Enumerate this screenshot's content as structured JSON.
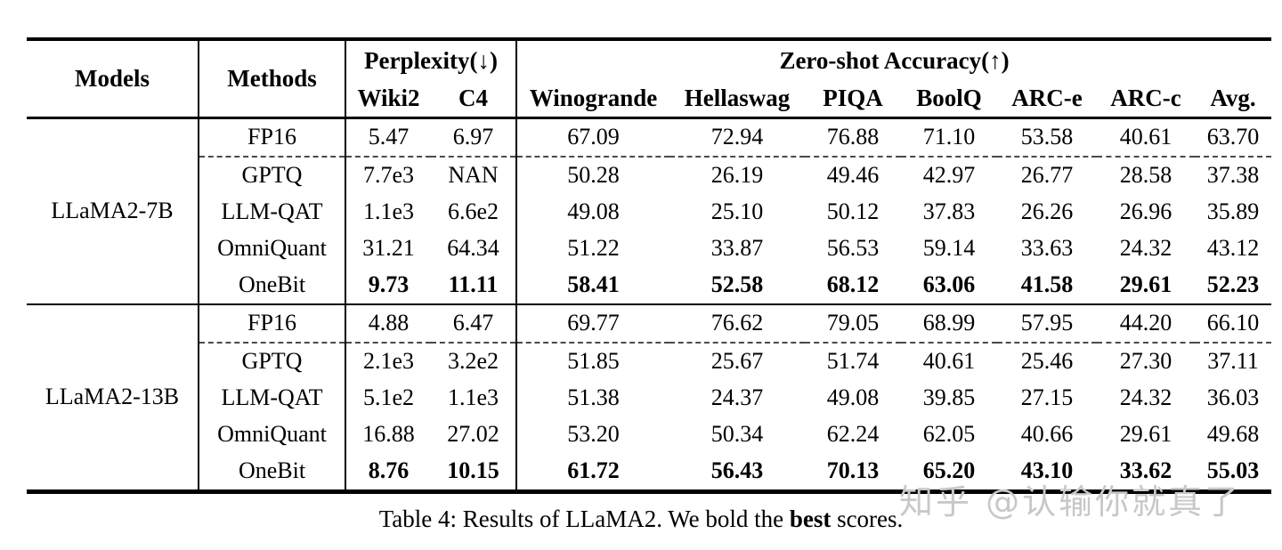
{
  "table": {
    "header": {
      "models": "Models",
      "methods": "Methods",
      "perplexity_group": "Perplexity(↓)",
      "accuracy_group": "Zero-shot Accuracy(↑)",
      "subcolumns": [
        "Wiki2",
        "C4",
        "Winogrande",
        "Hellaswag",
        "PIQA",
        "BoolQ",
        "ARC-e",
        "ARC-c",
        "Avg."
      ]
    },
    "groups": [
      {
        "model": "LLaMA2-7B",
        "rows": [
          {
            "method": "FP16",
            "values": [
              "5.47",
              "6.97",
              "67.09",
              "72.94",
              "76.88",
              "71.10",
              "53.58",
              "40.61",
              "63.70"
            ],
            "bold_values": false,
            "dashed_above": false
          },
          {
            "method": "GPTQ",
            "values": [
              "7.7e3",
              "NAN",
              "50.28",
              "26.19",
              "49.46",
              "42.97",
              "26.77",
              "28.58",
              "37.38"
            ],
            "bold_values": false,
            "dashed_above": true
          },
          {
            "method": "LLM-QAT",
            "values": [
              "1.1e3",
              "6.6e2",
              "49.08",
              "25.10",
              "50.12",
              "37.83",
              "26.26",
              "26.96",
              "35.89"
            ],
            "bold_values": false,
            "dashed_above": false
          },
          {
            "method": "OmniQuant",
            "values": [
              "31.21",
              "64.34",
              "51.22",
              "33.87",
              "56.53",
              "59.14",
              "33.63",
              "24.32",
              "43.12"
            ],
            "bold_values": false,
            "dashed_above": false
          },
          {
            "method": "OneBit",
            "values": [
              "9.73",
              "11.11",
              "58.41",
              "52.58",
              "68.12",
              "63.06",
              "41.58",
              "29.61",
              "52.23"
            ],
            "bold_values": true,
            "dashed_above": false
          }
        ]
      },
      {
        "model": "LLaMA2-13B",
        "rows": [
          {
            "method": "FP16",
            "values": [
              "4.88",
              "6.47",
              "69.77",
              "76.62",
              "79.05",
              "68.99",
              "57.95",
              "44.20",
              "66.10"
            ],
            "bold_values": false,
            "dashed_above": false
          },
          {
            "method": "GPTQ",
            "values": [
              "2.1e3",
              "3.2e2",
              "51.85",
              "25.67",
              "51.74",
              "40.61",
              "25.46",
              "27.30",
              "37.11"
            ],
            "bold_values": false,
            "dashed_above": true
          },
          {
            "method": "LLM-QAT",
            "values": [
              "5.1e2",
              "1.1e3",
              "51.38",
              "24.37",
              "49.08",
              "39.85",
              "27.15",
              "24.32",
              "36.03"
            ],
            "bold_values": false,
            "dashed_above": false
          },
          {
            "method": "OmniQuant",
            "values": [
              "16.88",
              "27.02",
              "53.20",
              "50.34",
              "62.24",
              "62.05",
              "40.66",
              "29.61",
              "49.68"
            ],
            "bold_values": false,
            "dashed_above": false
          },
          {
            "method": "OneBit",
            "values": [
              "8.76",
              "10.15",
              "61.72",
              "56.43",
              "70.13",
              "65.20",
              "43.10",
              "33.62",
              "55.03"
            ],
            "bold_values": true,
            "dashed_above": false
          }
        ]
      }
    ]
  },
  "caption": {
    "part1": "Table 4: Results of LLaMA2. We bold the ",
    "bold_word": "best",
    "part2": " scores."
  },
  "watermark": {
    "text": "知乎 @认输你就真了",
    "color": "#c8c8c8"
  }
}
